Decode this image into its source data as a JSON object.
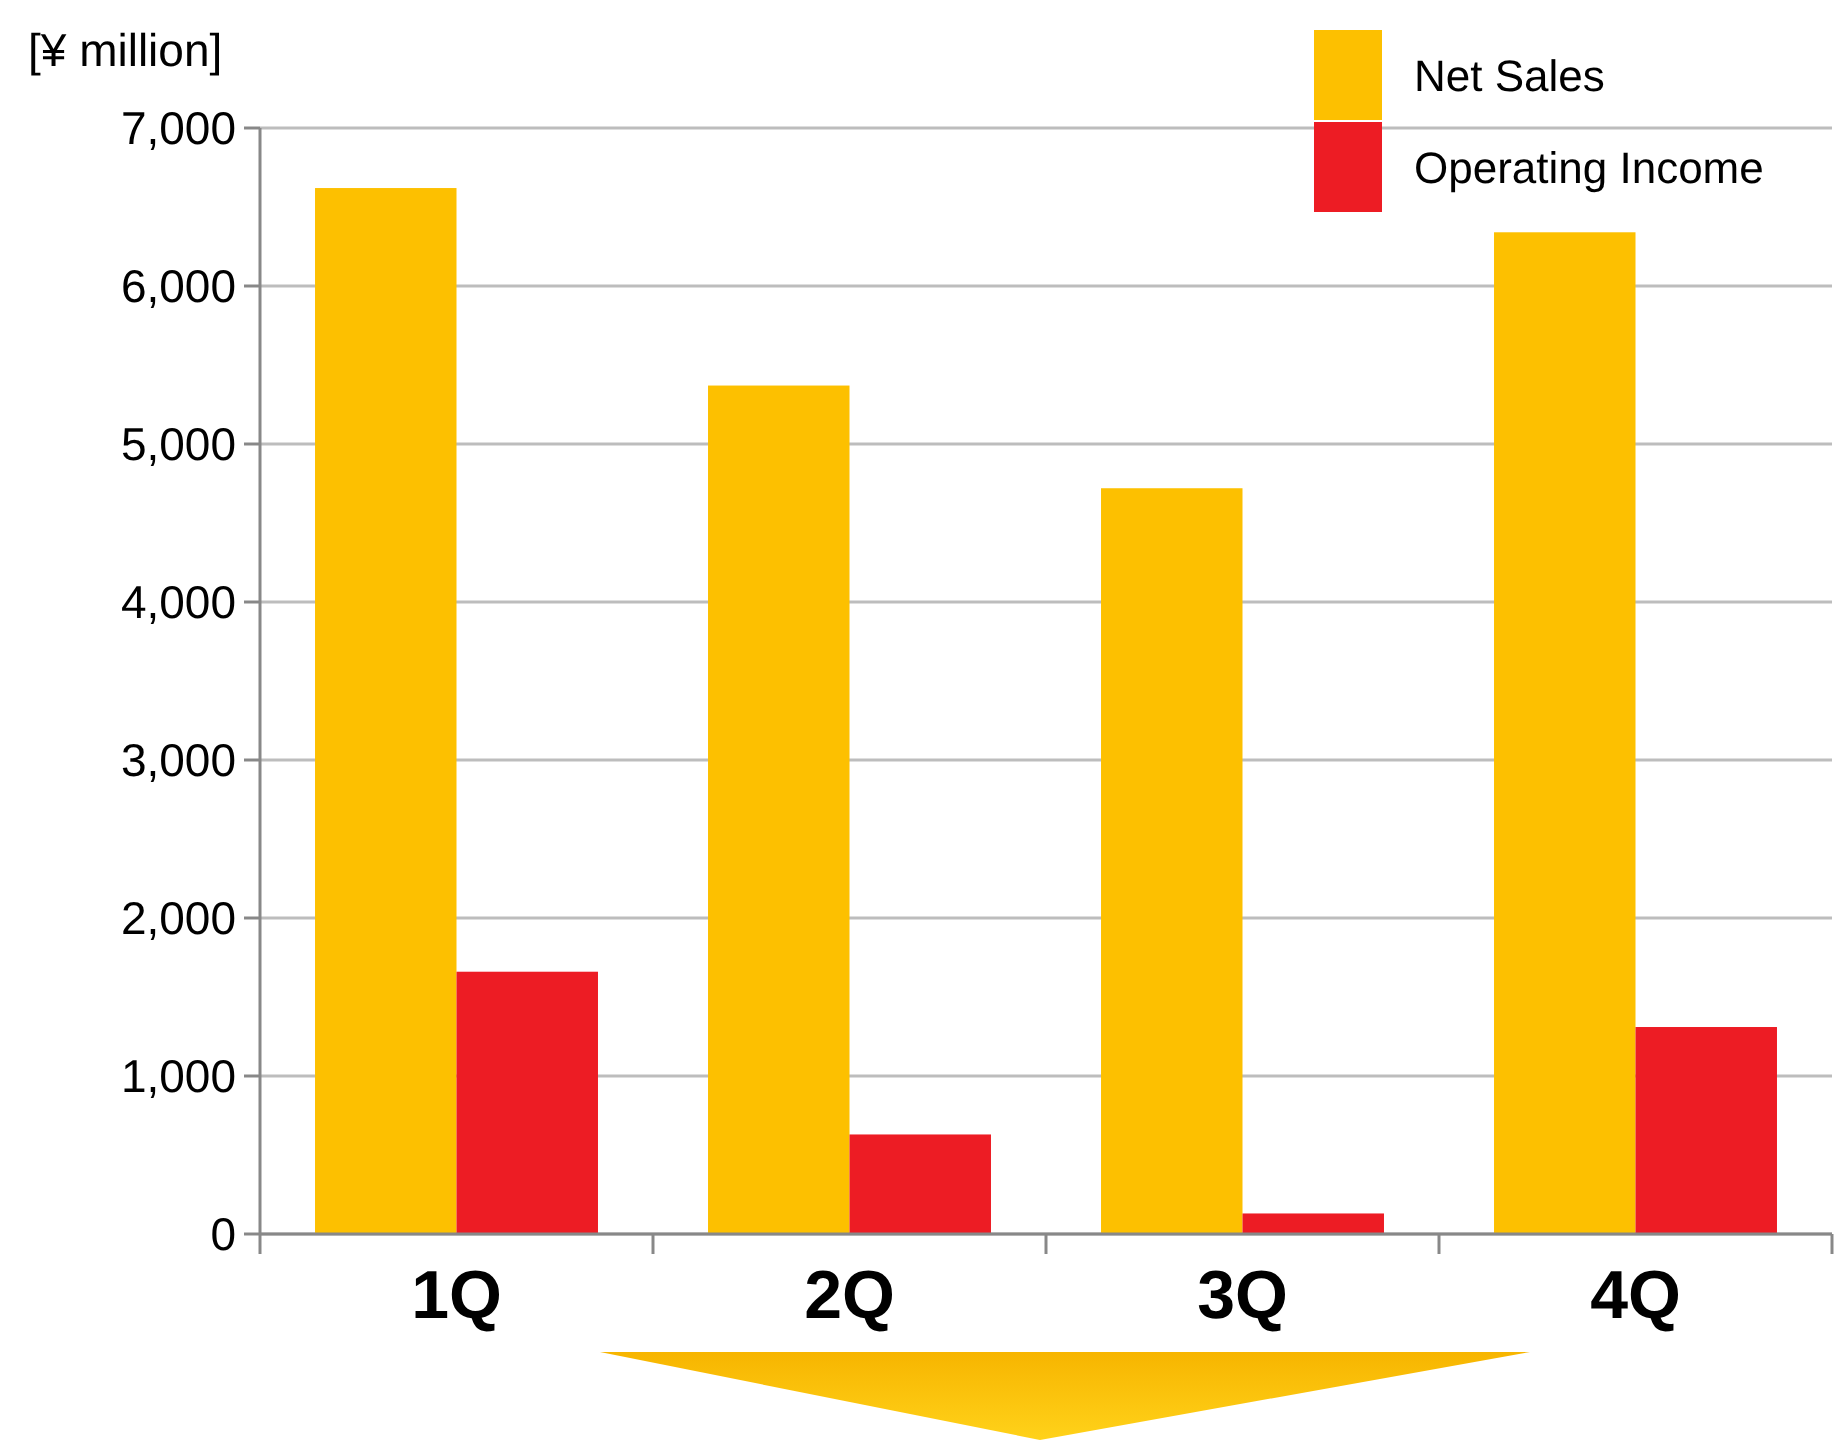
{
  "chart_data": {
    "type": "bar",
    "ylabel": "[¥ million]",
    "categories": [
      "1Q",
      "2Q",
      "3Q",
      "4Q"
    ],
    "series": [
      {
        "name": "Net Sales",
        "color": "#fdc000",
        "values": [
          6620,
          5370,
          4720,
          6340
        ]
      },
      {
        "name": "Operating Income",
        "color": "#ed1c24",
        "values": [
          1660,
          630,
          130,
          1310
        ]
      }
    ],
    "ylim": [
      0,
      7000
    ],
    "yticks": [
      {
        "value": 0,
        "label": "0"
      },
      {
        "value": 1000,
        "label": "1,000"
      },
      {
        "value": 2000,
        "label": "2,000"
      },
      {
        "value": 3000,
        "label": "3,000"
      },
      {
        "value": 4000,
        "label": "4,000"
      },
      {
        "value": 5000,
        "label": "5,000"
      },
      {
        "value": 6000,
        "label": "6,000"
      },
      {
        "value": 7000,
        "label": "7,000"
      }
    ],
    "grid": "y",
    "legend": "top right"
  }
}
